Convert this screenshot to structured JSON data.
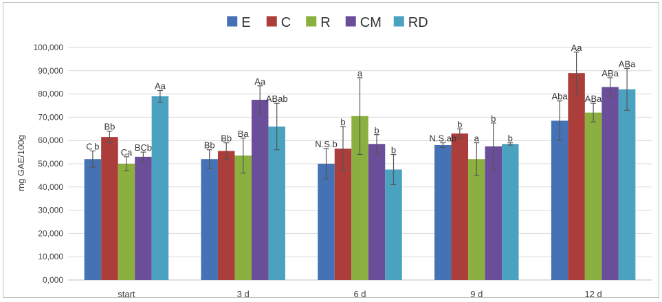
{
  "chart_data": {
    "type": "bar",
    "title": "",
    "xlabel": "",
    "ylabel": "mg GAE/100g",
    "ylim": [
      0,
      100
    ],
    "yticks": [
      0,
      10,
      20,
      30,
      40,
      50,
      60,
      70,
      80,
      90,
      100
    ],
    "ytick_labels": [
      "0,000",
      "10,000",
      "20,000",
      "30,000",
      "40,000",
      "50,000",
      "60,000",
      "70,000",
      "80,000",
      "90,000",
      "100,000"
    ],
    "grid": true,
    "legend_position": "top-center",
    "categories": [
      "start",
      "3 d",
      "6 d",
      "9 d",
      "12 d"
    ],
    "series": [
      {
        "name": "E",
        "color": "#4472b4",
        "values": [
          52,
          52,
          50,
          58,
          68.5
        ],
        "errors": [
          3.5,
          4,
          6.5,
          1,
          8.5
        ],
        "labels": [
          "C b",
          "Bb",
          "N.S.b",
          "N.S.ab",
          "Aba"
        ]
      },
      {
        "name": "C",
        "color": "#ab3d3b",
        "values": [
          61.5,
          55.5,
          56.5,
          63,
          89
        ],
        "errors": [
          2.5,
          3.5,
          9.5,
          2,
          9
        ],
        "labels": [
          "Bb",
          "Bb",
          "b",
          "b",
          "Aa"
        ]
      },
      {
        "name": "R",
        "color": "#8cb03f",
        "values": [
          50,
          53.5,
          70.5,
          52,
          72
        ],
        "errors": [
          3,
          7.5,
          16.5,
          7,
          4
        ],
        "labels": [
          "Ca",
          "Ba",
          "a",
          "a",
          "ABa"
        ]
      },
      {
        "name": "CM",
        "color": "#6b4e9a",
        "values": [
          53,
          77.5,
          58.5,
          57.5,
          83
        ],
        "errors": [
          2,
          6,
          4,
          10,
          4
        ],
        "labels": [
          "BCb",
          "Aa",
          "b",
          "b",
          "ABa"
        ]
      },
      {
        "name": "RD",
        "color": "#4ba2c0",
        "values": [
          79,
          66,
          47.5,
          58.5,
          82
        ],
        "errors": [
          2.5,
          10,
          6.5,
          0.5,
          9
        ],
        "labels": [
          "Aa",
          "ABab",
          "b",
          "b",
          "ABa"
        ]
      }
    ]
  }
}
